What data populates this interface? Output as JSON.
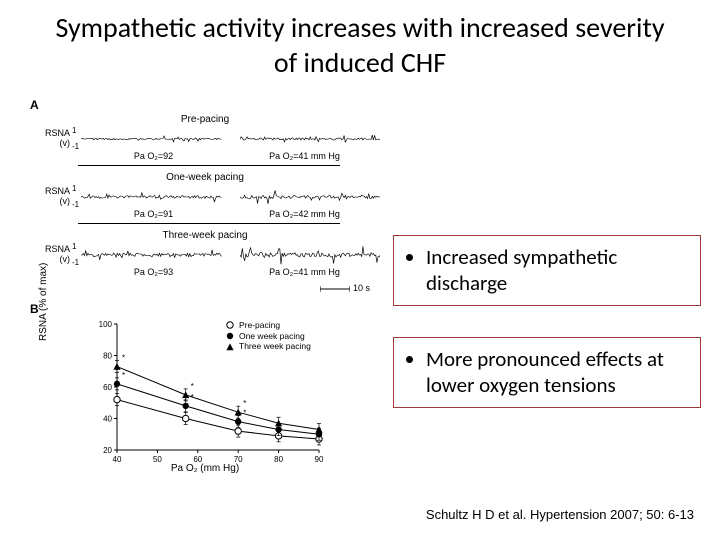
{
  "title": "Sympathetic activity increases with increased severity of induced CHF",
  "callouts": {
    "c1": "Increased sympathetic discharge",
    "c2": "More pronounced effects at lower oxygen tensions"
  },
  "citation": "Schultz H D et al. Hypertension 2007; 50: 6-13",
  "panelA": {
    "label": "A",
    "yAxis": {
      "unitLabel": "RSNA",
      "unitParen": "(v)",
      "tickTop": "1",
      "tickBot": "-1"
    },
    "scalebar": "10 s",
    "blocks": [
      {
        "title": "Pre-pacing",
        "leftCond": "Pa O₂=92",
        "rightCond": "Pa O₂=41 mm Hg",
        "leftAmp": 0.32,
        "rightAmp": 0.45
      },
      {
        "title": "One-week pacing",
        "leftCond": "Pa O₂=91",
        "rightCond": "Pa O₂=42 mm Hg",
        "leftAmp": 0.55,
        "rightAmp": 0.7
      },
      {
        "title": "Three-week pacing",
        "leftCond": "Pa O₂=93",
        "rightCond": "Pa O₂=41 mm Hg",
        "leftAmp": 0.75,
        "rightAmp": 0.95
      }
    ]
  },
  "panelB": {
    "label": "B",
    "type": "line",
    "xLabel": "Pa O₂ (mm Hg)",
    "yLabel": "RSNA (% of max)",
    "xlim": [
      40,
      90
    ],
    "xticks": [
      40,
      50,
      60,
      70,
      80,
      90
    ],
    "ylim": [
      20,
      100
    ],
    "yticks": [
      20,
      40,
      60,
      80,
      100
    ],
    "series": [
      {
        "name": "Pre-pacing",
        "marker": "open-circle",
        "x": [
          40,
          57,
          70,
          80,
          90
        ],
        "y": [
          52,
          40,
          32,
          29,
          27
        ]
      },
      {
        "name": "One week pacing",
        "marker": "filled-circle",
        "x": [
          40,
          57,
          70,
          80,
          90
        ],
        "y": [
          62,
          48,
          38,
          33,
          30
        ]
      },
      {
        "name": "Three week pacing",
        "marker": "filled-triangle",
        "x": [
          40,
          57,
          70,
          80,
          90
        ],
        "y": [
          73,
          55,
          44,
          37,
          33
        ]
      }
    ],
    "colors": {
      "stroke": "#000000",
      "background": "#ffffff"
    },
    "fontsize": {
      "label": 10,
      "tick": 8
    }
  }
}
